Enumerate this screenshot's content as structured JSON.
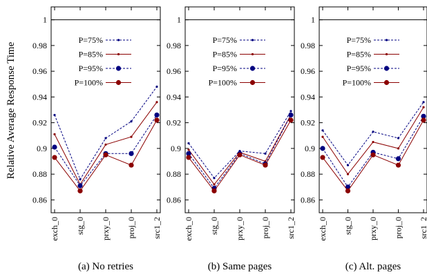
{
  "ylabel": "Relative Average Response Time",
  "chart_data": [
    {
      "type": "line",
      "caption": "(a)  No retries",
      "categories": [
        "exch_0",
        "stg_0",
        "prxy_0",
        "proj_0",
        "src1_2"
      ],
      "ylim": [
        0.85,
        1.01
      ],
      "yticks": [
        0.86,
        0.88,
        0.9,
        0.92,
        0.94,
        0.96,
        0.98,
        1
      ],
      "ytick_labels": [
        "0.86",
        "0.88",
        "0.9",
        "0.92",
        "0.94",
        "0.96",
        "0.98",
        "1"
      ],
      "series": [
        {
          "name": "P=75%",
          "values": [
            0.926,
            0.876,
            0.908,
            0.921,
            0.948
          ]
        },
        {
          "name": "P=85%",
          "values": [
            0.911,
            0.872,
            0.903,
            0.909,
            0.936
          ]
        },
        {
          "name": "P=95%",
          "values": [
            0.901,
            0.871,
            0.896,
            0.896,
            0.926
          ]
        },
        {
          "name": "P=100%",
          "values": [
            0.893,
            0.867,
            0.895,
            0.887,
            0.922
          ]
        }
      ]
    },
    {
      "type": "line",
      "caption": "(b)  Same pages",
      "categories": [
        "exch_0",
        "stg_0",
        "prxy_0",
        "proj_0",
        "src1_2"
      ],
      "ylim": [
        0.85,
        1.01
      ],
      "yticks": [
        0.86,
        0.88,
        0.9,
        0.92,
        0.94,
        0.96,
        0.98,
        1
      ],
      "ytick_labels": [
        "0.86",
        "0.88",
        "0.9",
        "0.92",
        "0.94",
        "0.96",
        "0.98",
        "1"
      ],
      "series": [
        {
          "name": "P=75%",
          "values": [
            0.904,
            0.877,
            0.898,
            0.896,
            0.929
          ]
        },
        {
          "name": "P=85%",
          "values": [
            0.899,
            0.872,
            0.897,
            0.89,
            0.926
          ]
        },
        {
          "name": "P=95%",
          "values": [
            0.896,
            0.869,
            0.896,
            0.888,
            0.926
          ]
        },
        {
          "name": "P=100%",
          "values": [
            0.893,
            0.867,
            0.895,
            0.887,
            0.922
          ]
        }
      ]
    },
    {
      "type": "line",
      "caption": "(c)  Alt. pages",
      "categories": [
        "exch_0",
        "stg_0",
        "prxy_0",
        "proj_0",
        "src1_2"
      ],
      "ylim": [
        0.85,
        1.01
      ],
      "yticks": [
        0.86,
        0.88,
        0.9,
        0.92,
        0.94,
        0.96,
        0.98,
        1
      ],
      "ytick_labels": [
        "0.86",
        "0.88",
        "0.9",
        "0.92",
        "0.94",
        "0.96",
        "0.98",
        "1"
      ],
      "series": [
        {
          "name": "P=75%",
          "values": [
            0.914,
            0.887,
            0.913,
            0.908,
            0.936
          ]
        },
        {
          "name": "P=85%",
          "values": [
            0.909,
            0.88,
            0.905,
            0.9,
            0.932
          ]
        },
        {
          "name": "P=95%",
          "values": [
            0.9,
            0.87,
            0.897,
            0.892,
            0.925
          ]
        },
        {
          "name": "P=100%",
          "values": [
            0.893,
            0.867,
            0.895,
            0.887,
            0.922
          ]
        }
      ]
    }
  ],
  "series_styles": [
    {
      "color": "#000080",
      "dash": true,
      "marker": "small"
    },
    {
      "color": "#8b0000",
      "dash": false,
      "marker": "small"
    },
    {
      "color": "#000080",
      "dash": true,
      "marker": "large"
    },
    {
      "color": "#8b0000",
      "dash": false,
      "marker": "large"
    }
  ]
}
